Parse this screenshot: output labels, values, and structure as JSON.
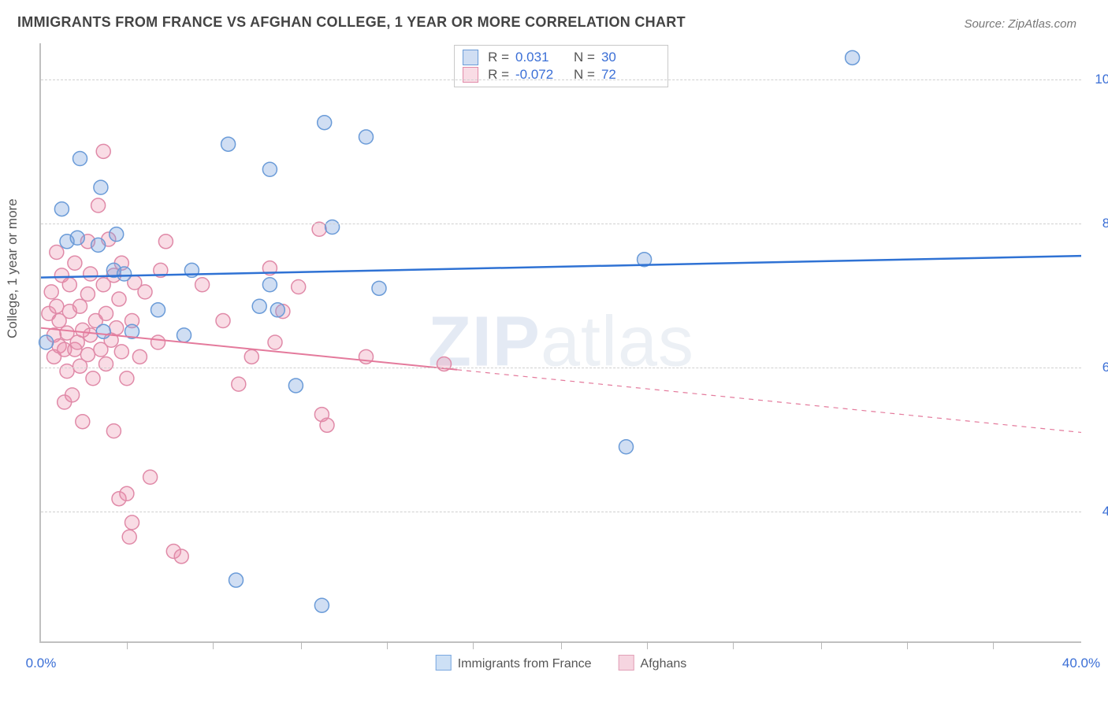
{
  "title": "IMMIGRANTS FROM FRANCE VS AFGHAN COLLEGE, 1 YEAR OR MORE CORRELATION CHART",
  "source": "Source: ZipAtlas.com",
  "ylabel": "College, 1 year or more",
  "watermark_bold": "ZIP",
  "watermark_rest": "atlas",
  "chart": {
    "type": "scatter",
    "xlim": [
      0,
      40
    ],
    "ylim": [
      22,
      105
    ],
    "x_ticks": [
      0,
      40
    ],
    "x_tick_labels": [
      "0.0%",
      "40.0%"
    ],
    "x_minor_ticks": [
      3.3,
      6.6,
      10,
      13.3,
      16.6,
      20,
      23.3,
      26.6,
      30,
      33.3,
      36.6
    ],
    "y_ticks": [
      40,
      60,
      80,
      100
    ],
    "y_tick_labels": [
      "40.0%",
      "60.0%",
      "80.0%",
      "100.0%"
    ],
    "grid_color": "#d0d0d0",
    "background_color": "#ffffff",
    "series": [
      {
        "key": "france",
        "label": "Immigrants from France",
        "color_fill": "rgba(120,160,220,0.35)",
        "color_stroke": "#6a9bd8",
        "line_color": "#2f72d4",
        "line_width": 2.5,
        "r_value": "0.031",
        "n_value": "30",
        "trend": {
          "x1": 0,
          "y1": 72.5,
          "x2": 40,
          "y2": 75.5,
          "observed_max_x": 40
        },
        "marker_radius": 9,
        "points": [
          [
            0.2,
            63.5
          ],
          [
            0.8,
            82
          ],
          [
            1.0,
            77.5
          ],
          [
            1.4,
            78
          ],
          [
            1.5,
            89
          ],
          [
            2.2,
            77
          ],
          [
            2.3,
            85
          ],
          [
            2.4,
            65
          ],
          [
            2.8,
            73.5
          ],
          [
            2.9,
            78.5
          ],
          [
            3.2,
            73
          ],
          [
            3.5,
            65
          ],
          [
            4.5,
            68
          ],
          [
            5.5,
            64.5
          ],
          [
            5.8,
            73.5
          ],
          [
            7.2,
            91
          ],
          [
            7.5,
            30.5
          ],
          [
            8.4,
            68.5
          ],
          [
            8.8,
            71.5
          ],
          [
            8.8,
            87.5
          ],
          [
            9.1,
            68
          ],
          [
            9.8,
            57.5
          ],
          [
            10.8,
            27
          ],
          [
            10.9,
            94
          ],
          [
            11.2,
            79.5
          ],
          [
            12.5,
            92
          ],
          [
            13.0,
            71
          ],
          [
            22.5,
            49
          ],
          [
            23.2,
            75
          ],
          [
            31.2,
            103
          ]
        ]
      },
      {
        "key": "afghans",
        "label": "Afghans",
        "color_fill": "rgba(235,140,170,0.30)",
        "color_stroke": "#e08aa8",
        "line_color": "#e47a9c",
        "line_width": 2,
        "r_value": "-0.072",
        "n_value": "72",
        "trend": {
          "x1": 0,
          "y1": 65.5,
          "x2": 40,
          "y2": 51,
          "observed_max_x": 16
        },
        "marker_radius": 9,
        "points": [
          [
            0.3,
            67.5
          ],
          [
            0.4,
            70.5
          ],
          [
            0.5,
            61.5
          ],
          [
            0.5,
            64.5
          ],
          [
            0.6,
            76
          ],
          [
            0.6,
            68.5
          ],
          [
            0.7,
            63
          ],
          [
            0.7,
            66.5
          ],
          [
            0.8,
            72.8
          ],
          [
            0.9,
            62.5
          ],
          [
            0.9,
            55.2
          ],
          [
            1.0,
            64.8
          ],
          [
            1.0,
            59.5
          ],
          [
            1.1,
            67.8
          ],
          [
            1.1,
            71.5
          ],
          [
            1.2,
            56.2
          ],
          [
            1.3,
            62.5
          ],
          [
            1.3,
            74.5
          ],
          [
            1.4,
            63.5
          ],
          [
            1.5,
            68.5
          ],
          [
            1.5,
            60.2
          ],
          [
            1.6,
            52.5
          ],
          [
            1.6,
            65.2
          ],
          [
            1.8,
            70.2
          ],
          [
            1.8,
            61.8
          ],
          [
            1.8,
            77.5
          ],
          [
            1.9,
            73
          ],
          [
            1.9,
            64.5
          ],
          [
            2.0,
            58.5
          ],
          [
            2.1,
            66.5
          ],
          [
            2.2,
            82.5
          ],
          [
            2.3,
            62.5
          ],
          [
            2.4,
            71.5
          ],
          [
            2.4,
            90
          ],
          [
            2.5,
            67.5
          ],
          [
            2.5,
            60.5
          ],
          [
            2.6,
            77.8
          ],
          [
            2.7,
            63.8
          ],
          [
            2.8,
            72.8
          ],
          [
            2.8,
            51.2
          ],
          [
            2.9,
            65.5
          ],
          [
            3.0,
            41.8
          ],
          [
            3.0,
            69.5
          ],
          [
            3.1,
            62.2
          ],
          [
            3.1,
            74.5
          ],
          [
            3.3,
            58.5
          ],
          [
            3.3,
            42.5
          ],
          [
            3.4,
            36.5
          ],
          [
            3.5,
            38.5
          ],
          [
            3.5,
            66.5
          ],
          [
            3.6,
            71.8
          ],
          [
            3.8,
            61.5
          ],
          [
            4.0,
            70.5
          ],
          [
            4.2,
            44.8
          ],
          [
            4.5,
            63.5
          ],
          [
            4.6,
            73.5
          ],
          [
            4.8,
            77.5
          ],
          [
            5.1,
            34.5
          ],
          [
            5.4,
            33.8
          ],
          [
            6.2,
            71.5
          ],
          [
            7.0,
            66.5
          ],
          [
            7.6,
            57.7
          ],
          [
            8.1,
            61.5
          ],
          [
            8.8,
            73.8
          ],
          [
            9.0,
            63.5
          ],
          [
            9.3,
            67.8
          ],
          [
            9.9,
            71.2
          ],
          [
            10.7,
            79.2
          ],
          [
            10.8,
            53.5
          ],
          [
            11.0,
            52.0
          ],
          [
            12.5,
            61.5
          ],
          [
            15.5,
            60.5
          ]
        ]
      }
    ],
    "top_legend_labels": {
      "r": "R =",
      "n": "N ="
    },
    "bottom_legend": [
      {
        "swatch_fill": "#cde0f5",
        "swatch_stroke": "#7aa8e0",
        "label_key": "france"
      },
      {
        "swatch_fill": "#f6d5e0",
        "swatch_stroke": "#e2a0b8",
        "label_key": "afghans"
      }
    ]
  }
}
